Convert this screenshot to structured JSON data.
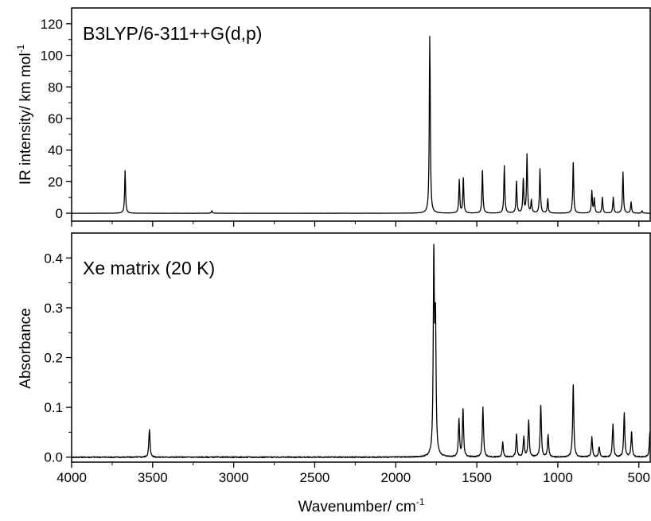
{
  "figure": {
    "xlabel": "Wavenumber/ cm",
    "xlabel_sup": "-1"
  },
  "chart_data": [
    {
      "type": "line",
      "title": "B3LYP/6-311++G(d,p)",
      "xlabel": "Wavenumber/ cm-1",
      "ylabel": "IR intensity/ km mol",
      "ylabel_sup": "-1",
      "xlim": [
        4000,
        430
      ],
      "ylim": [
        -5,
        130
      ],
      "x_ticks": [
        4000,
        3500,
        3000,
        2500,
        2000,
        1500,
        1000,
        500
      ],
      "y_ticks": [
        0,
        20,
        40,
        60,
        80,
        100,
        120
      ],
      "color": "#000000",
      "series": [
        {
          "peaks": [
            {
              "x": 3670,
              "y": 27
            },
            {
              "x": 3135,
              "y": 1.5
            },
            {
              "x": 1790,
              "y": 112
            },
            {
              "x": 1608,
              "y": 21
            },
            {
              "x": 1583,
              "y": 22
            },
            {
              "x": 1465,
              "y": 27
            },
            {
              "x": 1330,
              "y": 30
            },
            {
              "x": 1255,
              "y": 20
            },
            {
              "x": 1213,
              "y": 21
            },
            {
              "x": 1190,
              "y": 37
            },
            {
              "x": 1163,
              "y": 8
            },
            {
              "x": 1110,
              "y": 28
            },
            {
              "x": 1062,
              "y": 9
            },
            {
              "x": 905,
              "y": 32
            },
            {
              "x": 790,
              "y": 14
            },
            {
              "x": 775,
              "y": 9
            },
            {
              "x": 725,
              "y": 10
            },
            {
              "x": 658,
              "y": 10
            },
            {
              "x": 598,
              "y": 26
            },
            {
              "x": 548,
              "y": 7
            },
            {
              "x": 480,
              "y": 1.5
            }
          ]
        }
      ]
    },
    {
      "type": "line",
      "title": "Xe matrix (20 K)",
      "xlabel": "Wavenumber/ cm-1",
      "ylabel": "Absorbance",
      "xlim": [
        4000,
        430
      ],
      "ylim": [
        -0.01,
        0.45
      ],
      "x_ticks": [
        4000,
        3500,
        3000,
        2500,
        2000,
        1500,
        1000,
        500
      ],
      "y_ticks": [
        0.0,
        0.1,
        0.2,
        0.3,
        0.4
      ],
      "color": "#000000",
      "series": [
        {
          "peaks": [
            {
              "x": 3520,
              "y": 0.055
            },
            {
              "x": 1765,
              "y": 0.39
            },
            {
              "x": 1755,
              "y": 0.25
            },
            {
              "x": 1610,
              "y": 0.075
            },
            {
              "x": 1585,
              "y": 0.095
            },
            {
              "x": 1462,
              "y": 0.1
            },
            {
              "x": 1340,
              "y": 0.03
            },
            {
              "x": 1255,
              "y": 0.045
            },
            {
              "x": 1210,
              "y": 0.04
            },
            {
              "x": 1180,
              "y": 0.073
            },
            {
              "x": 1105,
              "y": 0.103
            },
            {
              "x": 1060,
              "y": 0.045
            },
            {
              "x": 905,
              "y": 0.145
            },
            {
              "x": 790,
              "y": 0.04
            },
            {
              "x": 745,
              "y": 0.02
            },
            {
              "x": 660,
              "y": 0.065
            },
            {
              "x": 590,
              "y": 0.088
            },
            {
              "x": 545,
              "y": 0.05
            },
            {
              "x": 432,
              "y": 0.05
            }
          ]
        }
      ]
    }
  ]
}
